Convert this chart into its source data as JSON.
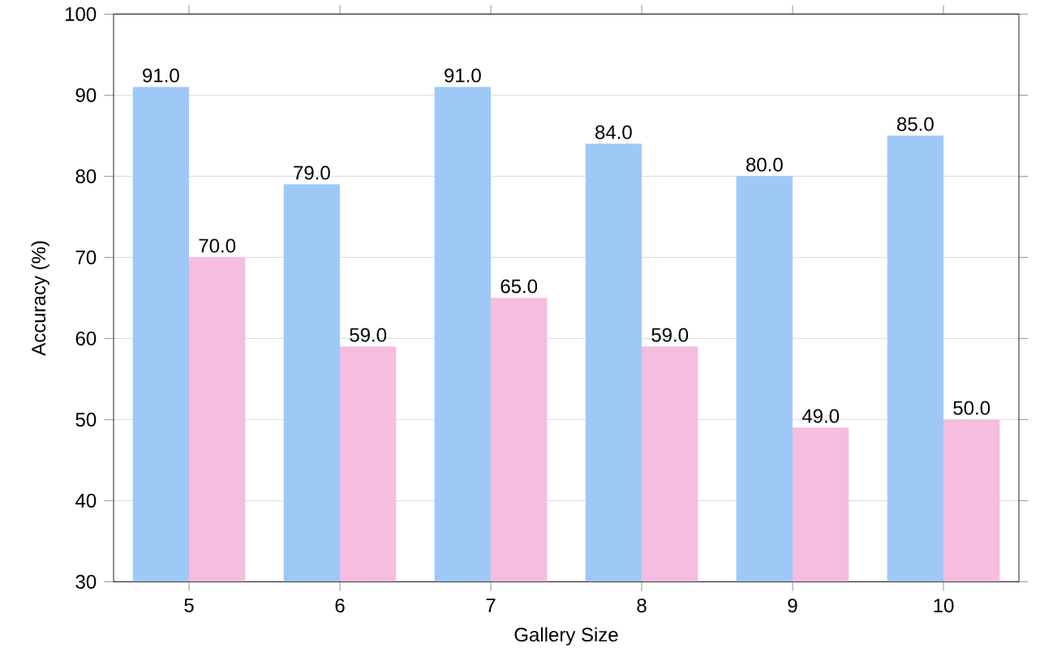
{
  "chart_data": {
    "type": "bar",
    "xlabel": "Gallery Size",
    "ylabel": "Accuracy (%)",
    "categories": [
      "5",
      "6",
      "7",
      "8",
      "9",
      "10"
    ],
    "series": [
      {
        "color": "#9ec9f7",
        "values": [
          91.0,
          79.0,
          91.0,
          84.0,
          80.0,
          85.0
        ],
        "value_labels": [
          "91.0",
          "79.0",
          "91.0",
          "84.0",
          "80.0",
          "85.0"
        ]
      },
      {
        "color": "#f5bde0",
        "values": [
          70.0,
          59.0,
          65.0,
          59.0,
          49.0,
          50.0
        ],
        "value_labels": [
          "70.0",
          "59.0",
          "65.0",
          "59.0",
          "49.0",
          "50.0"
        ]
      }
    ],
    "ylim": [
      30,
      100
    ],
    "yticks": [
      30,
      40,
      50,
      60,
      70,
      80,
      90,
      100
    ],
    "grid": "y"
  }
}
